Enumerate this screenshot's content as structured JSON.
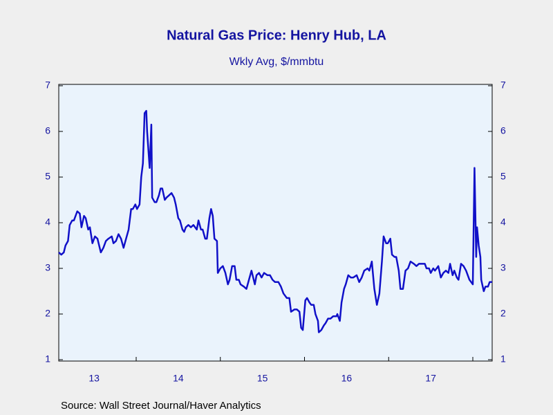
{
  "chart_data": {
    "type": "line",
    "title": "Natural Gas Price: Henry Hub, LA",
    "subtitle": "Wkly Avg, $/mmbtu",
    "source": "Source:  Wall Street Journal/Haver Analytics",
    "color": "#1010c8",
    "x": [
      2013.08,
      2013.11,
      2013.14,
      2013.16,
      2013.19,
      2013.21,
      2013.24,
      2013.26,
      2013.3,
      2013.33,
      2013.35,
      2013.38,
      2013.4,
      2013.43,
      2013.45,
      2013.48,
      2013.51,
      2013.54,
      2013.58,
      2013.61,
      2013.64,
      2013.67,
      2013.71,
      2013.73,
      2013.76,
      2013.79,
      2013.82,
      2013.85,
      2013.88,
      2013.91,
      2013.94,
      2013.96,
      2013.99,
      2014.01,
      2014.04,
      2014.06,
      2014.08,
      2014.1,
      2014.12,
      2014.13,
      2014.16,
      2014.18,
      2014.19,
      2014.22,
      2014.24,
      2014.27,
      2014.29,
      2014.31,
      2014.34,
      2014.36,
      2014.39,
      2014.42,
      2014.45,
      2014.47,
      2014.5,
      2014.52,
      2014.55,
      2014.57,
      2014.59,
      2014.62,
      2014.65,
      2014.68,
      2014.72,
      2014.74,
      2014.77,
      2014.79,
      2014.82,
      2014.84,
      2014.87,
      2014.89,
      2014.91,
      2014.93,
      2014.96,
      2014.97,
      2015.0,
      2015.03,
      2015.06,
      2015.09,
      2015.11,
      2015.14,
      2015.17,
      2015.19,
      2015.22,
      2015.24,
      2015.28,
      2015.31,
      2015.34,
      2015.37,
      2015.41,
      2015.43,
      2015.46,
      2015.49,
      2015.52,
      2015.56,
      2015.59,
      2015.62,
      2015.65,
      2015.69,
      2015.72,
      2015.75,
      2015.79,
      2015.82,
      2015.84,
      2015.88,
      2015.91,
      2015.94,
      2015.96,
      2015.98,
      2016.01,
      2016.03,
      2016.06,
      2016.08,
      2016.11,
      2016.13,
      2016.16,
      2016.17,
      2016.2,
      2016.23,
      2016.25,
      2016.28,
      2016.31,
      2016.34,
      2016.38,
      2016.39,
      2016.42,
      2016.44,
      2016.47,
      2016.49,
      2016.52,
      2016.55,
      2016.58,
      2016.62,
      2016.65,
      2016.68,
      2016.71,
      2016.75,
      2016.77,
      2016.8,
      2016.83,
      2016.86,
      2016.89,
      2016.92,
      2016.94,
      2016.97,
      2016.99,
      2017.02,
      2017.04,
      2017.07,
      2017.09,
      2017.12,
      2017.14,
      2017.17,
      2017.2,
      2017.23,
      2017.26,
      2017.3,
      2017.33,
      2017.36,
      2017.4,
      2017.43,
      2017.45,
      2017.48,
      2017.5,
      2017.53,
      2017.55,
      2017.59,
      2017.62,
      2017.65,
      2017.68,
      2017.71,
      2017.73,
      2017.76,
      2017.78,
      2017.81,
      2017.83,
      2017.86,
      2017.89,
      2017.92,
      2017.96,
      2017.98,
      2018.0,
      2018.02,
      2018.04,
      2018.05,
      2018.07,
      2018.09,
      2018.1,
      2018.13,
      2018.15,
      2018.18,
      2018.2,
      2018.23
    ],
    "values": [
      3.35,
      3.3,
      3.35,
      3.5,
      3.6,
      3.95,
      4.05,
      4.05,
      4.25,
      4.2,
      3.9,
      4.15,
      4.1,
      3.85,
      3.9,
      3.55,
      3.7,
      3.65,
      3.35,
      3.45,
      3.6,
      3.65,
      3.7,
      3.55,
      3.6,
      3.75,
      3.65,
      3.45,
      3.65,
      3.85,
      4.3,
      4.3,
      4.4,
      4.3,
      4.4,
      5.0,
      5.3,
      6.4,
      6.45,
      6.0,
      5.2,
      6.15,
      4.55,
      4.45,
      4.45,
      4.6,
      4.75,
      4.75,
      4.5,
      4.55,
      4.6,
      4.65,
      4.55,
      4.4,
      4.1,
      4.05,
      3.85,
      3.8,
      3.9,
      3.95,
      3.9,
      3.95,
      3.85,
      4.05,
      3.85,
      3.85,
      3.65,
      3.65,
      4.1,
      4.3,
      4.15,
      3.65,
      3.6,
      2.9,
      3.0,
      3.05,
      2.9,
      2.65,
      2.75,
      3.05,
      3.05,
      2.75,
      2.75,
      2.65,
      2.6,
      2.55,
      2.75,
      2.95,
      2.65,
      2.85,
      2.9,
      2.8,
      2.9,
      2.85,
      2.85,
      2.75,
      2.7,
      2.7,
      2.6,
      2.45,
      2.35,
      2.35,
      2.05,
      2.1,
      2.1,
      2.05,
      1.7,
      1.65,
      2.3,
      2.35,
      2.25,
      2.2,
      2.2,
      2.0,
      1.85,
      1.6,
      1.65,
      1.75,
      1.8,
      1.9,
      1.9,
      1.95,
      1.95,
      2.0,
      1.85,
      2.25,
      2.55,
      2.65,
      2.85,
      2.8,
      2.8,
      2.85,
      2.7,
      2.8,
      2.95,
      3.0,
      2.95,
      3.15,
      2.55,
      2.2,
      2.45,
      3.15,
      3.7,
      3.55,
      3.55,
      3.65,
      3.3,
      3.25,
      3.25,
      2.95,
      2.55,
      2.55,
      2.95,
      3.0,
      3.15,
      3.1,
      3.05,
      3.1,
      3.1,
      3.1,
      3.0,
      3.0,
      2.9,
      3.0,
      2.95,
      3.05,
      2.8,
      2.9,
      2.95,
      2.9,
      3.1,
      2.85,
      2.95,
      2.8,
      2.75,
      3.1,
      3.05,
      2.95,
      2.75,
      2.7,
      2.65,
      5.2,
      3.25,
      3.9,
      3.5,
      3.25,
      2.75,
      2.5,
      2.6,
      2.6,
      2.7,
      2.7
    ],
    "xlim": [
      2013.08,
      2018.23
    ],
    "xticks": [
      {
        "value": 2013.5,
        "label": "13"
      },
      {
        "value": 2014.5,
        "label": "14"
      },
      {
        "value": 2015.5,
        "label": "15"
      },
      {
        "value": 2016.5,
        "label": "16"
      },
      {
        "value": 2017.5,
        "label": "17"
      }
    ],
    "ylim": [
      0.97,
      7.03
    ],
    "yticks": [
      1,
      2,
      3,
      4,
      5,
      6,
      7
    ]
  }
}
